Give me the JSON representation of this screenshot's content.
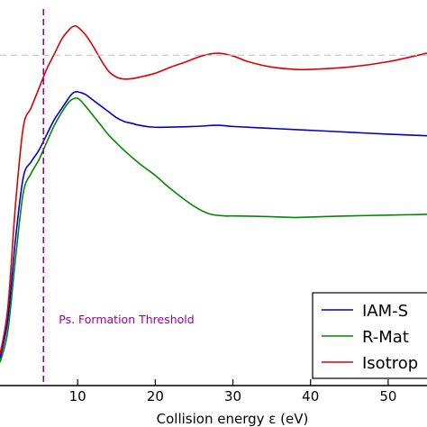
{
  "chart_data": {
    "type": "line",
    "title": "",
    "xlabel": "Collision energy ε (eV)",
    "ylabel": "",
    "xlim": [
      0,
      55
    ],
    "ylim": [
      0,
      1
    ],
    "xticks": [
      10,
      20,
      30,
      40,
      50
    ],
    "xtick_labels": [
      "10",
      "20",
      "30",
      "40",
      "50"
    ],
    "grid": false,
    "legend_placement": "bottom-right",
    "threshold": {
      "x": 5.6,
      "label": "Ps. Formation Threshold",
      "color": "#990099"
    },
    "reference_line": {
      "y": 0.857,
      "color": "#bbbbbb"
    },
    "series": [
      {
        "name": "IAM-S",
        "color": "#0000cc",
        "x": [
          0,
          1,
          2,
          3,
          4,
          5,
          6,
          7,
          8,
          9,
          9.5,
          10,
          11,
          12,
          13,
          14,
          15,
          16,
          17,
          18,
          20,
          25,
          28,
          30,
          35,
          40,
          45,
          50,
          55
        ],
        "y": [
          0.07,
          0.17,
          0.38,
          0.54,
          0.58,
          0.61,
          0.65,
          0.69,
          0.72,
          0.75,
          0.76,
          0.762,
          0.755,
          0.74,
          0.725,
          0.71,
          0.695,
          0.685,
          0.68,
          0.675,
          0.67,
          0.672,
          0.675,
          0.672,
          0.667,
          0.662,
          0.657,
          0.652,
          0.648
        ]
      },
      {
        "name": "R-Mat",
        "color": "#008800",
        "x": [
          0,
          1,
          2,
          3,
          4,
          5,
          6,
          7,
          8,
          9,
          10,
          11,
          12,
          13,
          14,
          16,
          18,
          20,
          22,
          25,
          27,
          29,
          30,
          35,
          38,
          40,
          45,
          50,
          55
        ],
        "y": [
          0.06,
          0.14,
          0.33,
          0.5,
          0.55,
          0.585,
          0.63,
          0.675,
          0.71,
          0.738,
          0.745,
          0.725,
          0.7,
          0.675,
          0.65,
          0.61,
          0.575,
          0.545,
          0.51,
          0.465,
          0.445,
          0.44,
          0.44,
          0.438,
          0.436,
          0.437,
          0.44,
          0.442,
          0.444
        ]
      },
      {
        "name": "Isotrop",
        "color": "#dd0000",
        "x": [
          0,
          1,
          2,
          3,
          4,
          5,
          6,
          7,
          8,
          9,
          9.5,
          10,
          11,
          12,
          13,
          14,
          15,
          16,
          17,
          18,
          20,
          22,
          24,
          26,
          28,
          30,
          32,
          35,
          38,
          40,
          45,
          50,
          55
        ],
        "y": [
          0.08,
          0.2,
          0.47,
          0.67,
          0.72,
          0.77,
          0.82,
          0.86,
          0.9,
          0.925,
          0.932,
          0.93,
          0.91,
          0.88,
          0.845,
          0.815,
          0.8,
          0.795,
          0.796,
          0.8,
          0.81,
          0.826,
          0.84,
          0.855,
          0.862,
          0.855,
          0.84,
          0.826,
          0.82,
          0.82,
          0.826,
          0.84,
          0.862
        ]
      }
    ]
  }
}
